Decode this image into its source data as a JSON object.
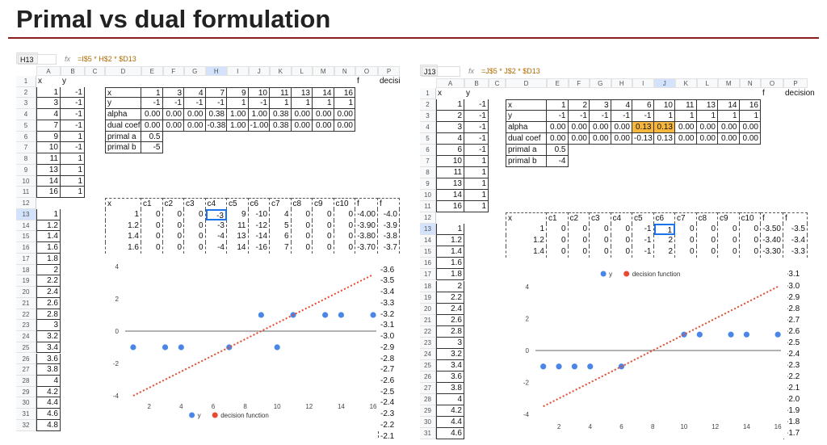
{
  "title": "Primal vs dual formulation",
  "panes": [
    {
      "name_box": "H13",
      "fx_label": "fx",
      "formula": "=I$5 * H$2 * $D13",
      "columns": [
        "A",
        "B",
        "C",
        "D",
        "E",
        "F",
        "G",
        "H",
        "I",
        "J",
        "K",
        "L",
        "M",
        "N",
        "O",
        "P"
      ],
      "row_numbers": [
        1,
        2,
        3,
        4,
        5,
        6,
        7,
        8,
        9,
        10,
        11,
        12,
        13,
        14,
        15,
        16,
        17,
        18,
        19,
        20,
        21,
        22,
        23,
        24,
        25,
        26,
        27,
        28,
        29,
        30,
        31,
        32
      ],
      "xy_table": [
        [
          "x",
          "y"
        ],
        [
          "1",
          "-1"
        ],
        [
          "3",
          "-1"
        ],
        [
          "4",
          "-1"
        ],
        [
          "7",
          "-1"
        ],
        [
          "9",
          "1"
        ],
        [
          "10",
          "-1"
        ],
        [
          "11",
          "1"
        ],
        [
          "13",
          "1"
        ],
        [
          "14",
          "1"
        ],
        [
          "16",
          "1"
        ]
      ],
      "params_table": [
        [
          "x",
          "1",
          "3",
          "4",
          "7",
          "9",
          "10",
          "11",
          "13",
          "14",
          "16"
        ],
        [
          "y",
          "-1",
          "-1",
          "-1",
          "-1",
          "1",
          "-1",
          "1",
          "1",
          "1",
          "1"
        ],
        [
          "alpha",
          "0.00",
          "0.00",
          "0.00",
          "0.38",
          "1.00",
          "1.00",
          "0.38",
          "0.00",
          "0.00",
          "0.00"
        ],
        [
          "dual coef",
          "0.00",
          "0.00",
          "0.00",
          "-0.38",
          "1.00",
          "-1.00",
          "0.38",
          "0.00",
          "0.00",
          "0.00"
        ],
        [
          "primal a",
          "0.5"
        ],
        [
          "primal b",
          "-5"
        ]
      ],
      "f_label": "f",
      "decision_label": "decision",
      "grid_table": [
        [
          "x",
          "c1",
          "c2",
          "c3",
          "c4",
          "c5",
          "c6",
          "c7",
          "c8",
          "c9",
          "c10",
          "f",
          "f"
        ],
        [
          "1",
          "0",
          "0",
          "0",
          "-3",
          "9",
          "-10",
          "4",
          "0",
          "0",
          "0",
          "-4.00",
          "-4.0"
        ],
        [
          "1.2",
          "0",
          "0",
          "0",
          "-3",
          "11",
          "-12",
          "5",
          "0",
          "0",
          "0",
          "-3.90",
          "-3.9"
        ],
        [
          "1.4",
          "0",
          "0",
          "0",
          "-4",
          "13",
          "-14",
          "6",
          "0",
          "0",
          "0",
          "-3.80",
          "-3.8"
        ],
        [
          "1.6",
          "0",
          "0",
          "0",
          "-4",
          "14",
          "-16",
          "7",
          "0",
          "0",
          "0",
          "-3.70",
          "-3.7"
        ]
      ],
      "x_column": [
        "1",
        "1.2",
        "1.4",
        "1.6",
        "1.8",
        "2",
        "2.2",
        "2.4",
        "2.6",
        "2.8",
        "3",
        "3.2",
        "3.4",
        "3.6",
        "3.8",
        "4",
        "4.2",
        "4.4",
        "4.6",
        "4.8"
      ],
      "decision_column": [
        "-3.6",
        "-3.5",
        "-3.4",
        "-3.3",
        "-3.2",
        "-3.1",
        "-3.0",
        "-2.9",
        "-2.8",
        "-2.7",
        "-2.6",
        "-2.5",
        "-2.4",
        "-2.3",
        "-2.2",
        "-2.1"
      ],
      "chart": {
        "type": "scatter",
        "xlim": [
          0.5,
          16.2
        ],
        "ylim": [
          -4.2,
          4.4
        ],
        "xticks": [
          2,
          4,
          6,
          8,
          10,
          12,
          14,
          16
        ],
        "yticks": [
          -4,
          -2,
          0,
          2,
          4
        ],
        "zero_line": true,
        "legend": "bottom",
        "series": [
          {
            "name": "y",
            "color": "#4a86e8",
            "x": [
              1,
              3,
              4,
              7,
              9,
              10,
              11,
              13,
              14,
              16
            ],
            "values": [
              -1,
              -1,
              -1,
              -1,
              1,
              -1,
              1,
              1,
              1,
              1
            ]
          },
          {
            "name": "decision function",
            "type": "line",
            "color": "#e8492f",
            "x": [
              1,
              16
            ],
            "values": [
              -4,
              3.5
            ]
          }
        ]
      }
    },
    {
      "name_box": "J13",
      "fx_label": "fx",
      "formula": "=J$5 * J$2 * $D13",
      "columns": [
        "A",
        "B",
        "C",
        "D",
        "E",
        "F",
        "G",
        "H",
        "I",
        "J",
        "K",
        "L",
        "M",
        "N",
        "O",
        "P"
      ],
      "row_numbers": [
        1,
        2,
        3,
        4,
        5,
        6,
        7,
        8,
        9,
        10,
        11,
        12,
        13,
        14,
        15,
        16,
        17,
        18,
        19,
        20,
        21,
        22,
        23,
        24,
        25,
        26,
        27,
        28,
        29,
        30,
        31
      ],
      "xy_table": [
        [
          "x",
          "y"
        ],
        [
          "1",
          "-1"
        ],
        [
          "2",
          "-1"
        ],
        [
          "3",
          "-1"
        ],
        [
          "4",
          "-1"
        ],
        [
          "6",
          "-1"
        ],
        [
          "10",
          "1"
        ],
        [
          "11",
          "1"
        ],
        [
          "13",
          "1"
        ],
        [
          "14",
          "1"
        ],
        [
          "16",
          "1"
        ]
      ],
      "params_table": [
        [
          "x",
          "1",
          "2",
          "3",
          "4",
          "6",
          "10",
          "11",
          "13",
          "14",
          "16"
        ],
        [
          "y",
          "-1",
          "-1",
          "-1",
          "-1",
          "-1",
          "1",
          "1",
          "1",
          "1",
          "1"
        ],
        [
          "alpha",
          "0.00",
          "0.00",
          "0.00",
          "0.00",
          "0.13",
          "0.13",
          "0.00",
          "0.00",
          "0.00",
          "0.00"
        ],
        [
          "dual coef",
          "0.00",
          "0.00",
          "0.00",
          "0.00",
          "-0.13",
          "0.13",
          "0.00",
          "0.00",
          "0.00",
          "0.00"
        ],
        [
          "primal a",
          "0.5"
        ],
        [
          "primal b",
          "-4"
        ]
      ],
      "f_label": "f",
      "decision_label": "decision",
      "grid_table": [
        [
          "x",
          "c1",
          "c2",
          "c3",
          "c4",
          "c5",
          "c6",
          "c7",
          "c8",
          "c9",
          "c10",
          "f",
          "f"
        ],
        [
          "1",
          "0",
          "0",
          "0",
          "0",
          "-1",
          "1",
          "0",
          "0",
          "0",
          "0",
          "-3.50",
          "-3.5"
        ],
        [
          "1.2",
          "0",
          "0",
          "0",
          "0",
          "-1",
          "2",
          "0",
          "0",
          "0",
          "0",
          "-3.40",
          "-3.4"
        ],
        [
          "1.4",
          "0",
          "0",
          "0",
          "0",
          "-1",
          "2",
          "0",
          "0",
          "0",
          "0",
          "-3.30",
          "-3.3"
        ]
      ],
      "x_column": [
        "1",
        "1.2",
        "1.4",
        "1.6",
        "1.8",
        "2",
        "2.2",
        "2.4",
        "2.6",
        "2.8",
        "3",
        "3.2",
        "3.4",
        "3.6",
        "3.8",
        "4",
        "4.2",
        "4.4",
        "4.6"
      ],
      "decision_column": [
        "-3.1",
        "-3.0",
        "-2.9",
        "-2.8",
        "-2.7",
        "-2.6",
        "-2.5",
        "-2.4",
        "-2.3",
        "-2.2",
        "-2.1",
        "-2.0",
        "-1.9",
        "-1.8",
        "-1.7"
      ],
      "chart": {
        "type": "scatter",
        "xlim": [
          0.5,
          16.2
        ],
        "ylim": [
          -4.3,
          4.2
        ],
        "xticks": [
          2,
          4,
          6,
          8,
          10,
          12,
          14,
          16
        ],
        "yticks": [
          -4,
          -2,
          0,
          2,
          4
        ],
        "zero_line": true,
        "legend": "top",
        "series": [
          {
            "name": "y",
            "color": "#4a86e8",
            "x": [
              1,
              2,
              3,
              4,
              6,
              10,
              11,
              13,
              14,
              16
            ],
            "values": [
              -1,
              -1,
              -1,
              -1,
              -1,
              1,
              1,
              1,
              1,
              1
            ]
          },
          {
            "name": "decision function",
            "type": "line",
            "color": "#e8492f",
            "x": [
              1,
              16
            ],
            "values": [
              -3.5,
              4
            ]
          }
        ]
      }
    }
  ]
}
